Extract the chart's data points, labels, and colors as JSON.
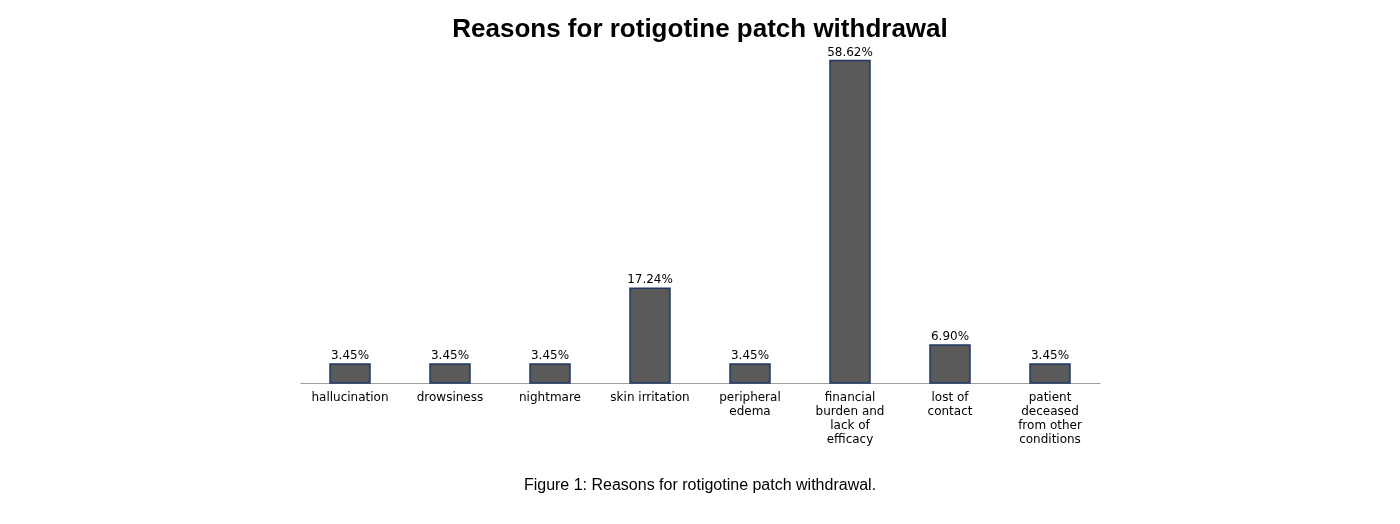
{
  "chart_data": {
    "type": "bar",
    "title": "Reasons for rotigotine patch withdrawal",
    "categories": [
      "hallucination",
      "drowsiness",
      "nightmare",
      "skin irritation",
      "peripheral\nedema",
      "financial\nburden and\nlack of\nefficacy",
      "lost of\ncontact",
      "patient\ndeceased\nfrom other\nconditions"
    ],
    "values": [
      3.45,
      3.45,
      3.45,
      17.24,
      3.45,
      58.62,
      6.9,
      3.45
    ],
    "value_labels": [
      "3.45%",
      "3.45%",
      "3.45%",
      "17.24%",
      "3.45%",
      "58.62%",
      "6.90%",
      "3.45%"
    ],
    "color": "#595959",
    "annotations": [
      "Figure 1: Reasons for rotigotine patch withdrawal."
    ]
  }
}
